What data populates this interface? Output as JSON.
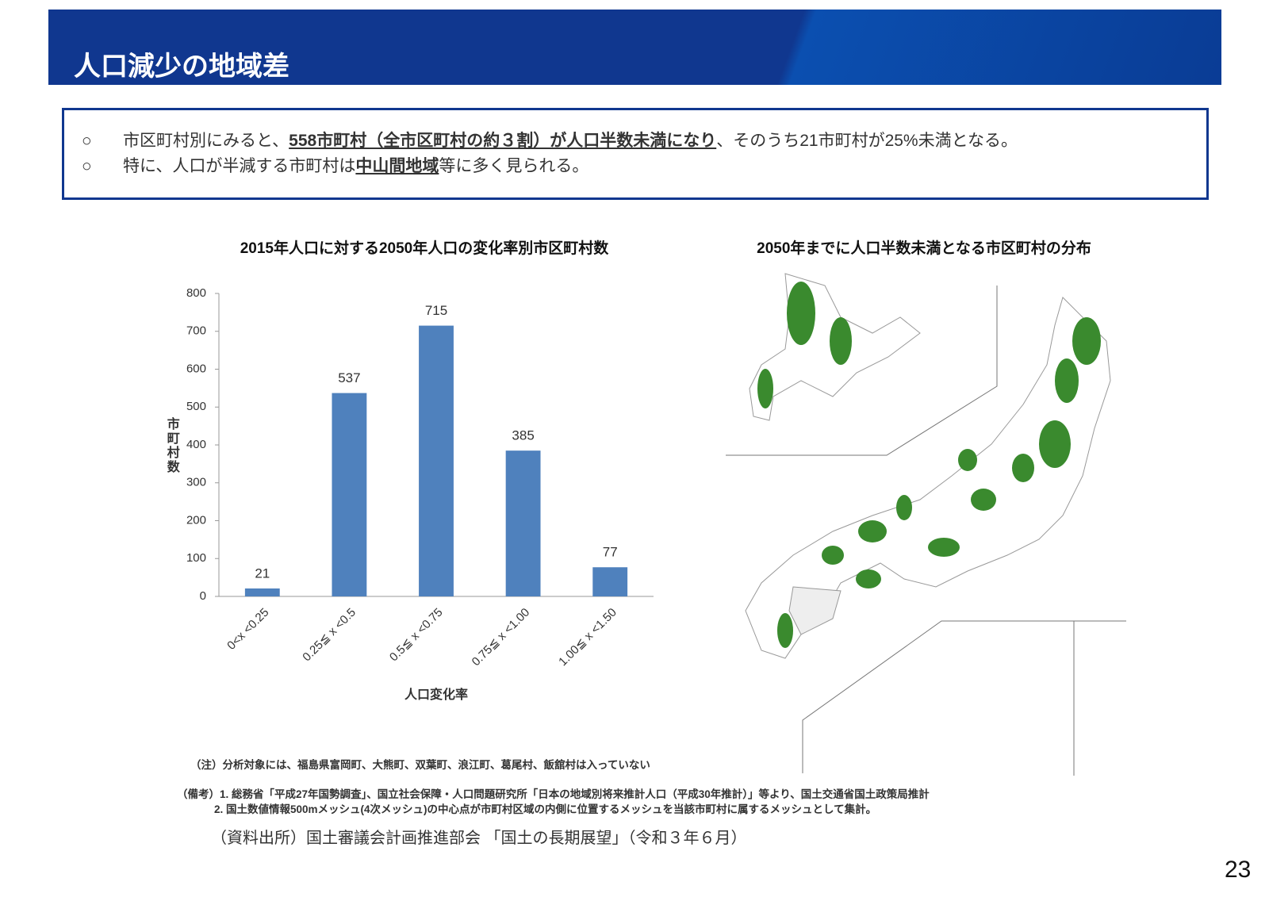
{
  "header": {
    "title": "人口減少の地域差"
  },
  "bullets": [
    {
      "marker": "○",
      "parts": [
        "市区町村別にみると、",
        "558市町村（全市区町村の約３割）が人口半数未満になり",
        "、そのうち21市町村が25%未満となる。"
      ]
    },
    {
      "marker": "○",
      "parts": [
        "特に、人口が半減する市町村は",
        "中山間地域",
        "等に多く見られる。"
      ]
    }
  ],
  "chart_data": {
    "type": "bar",
    "title": "2015年人口に対する2050年人口の変化率別市区町村数",
    "categories": [
      "0<x <0.25",
      "0.25≦ x <0.5",
      "0.5≦ x <0.75",
      "0.75≦ x <1.00",
      "1.00≦ x <1.50"
    ],
    "values": [
      21,
      537,
      715,
      385,
      77
    ],
    "color": "#4f81bd",
    "ylim": [
      0,
      800
    ],
    "yticks": [
      0,
      100,
      200,
      300,
      400,
      500,
      600,
      700,
      800
    ],
    "ylabel": "市町村数",
    "xlabel": "人口変化率",
    "grid": false
  },
  "map": {
    "title": "2050年までに人口半数未満となる市区町村の分布"
  },
  "notes": [
    "（注）分析対象には、福島県富岡町、大熊町、双葉町、浪江町、葛尾村、飯舘村は入っていない",
    "（備考）1. 総務省「平成27年国勢調査」、国立社会保障・人口問題研究所「日本の地域別将来推計人口（平成30年推計）」等より、国土交通省国土政策局推計",
    "2. 国土数値情報500mメッシュ(4次メッシュ)の中心点が市町村区域の内側に位置するメッシュを当該市町村に属するメッシュとして集計。"
  ],
  "source": "（資料出所）国土審議会計画推進部会 「国土の長期展望」（令和３年６月）",
  "page_number": "23"
}
